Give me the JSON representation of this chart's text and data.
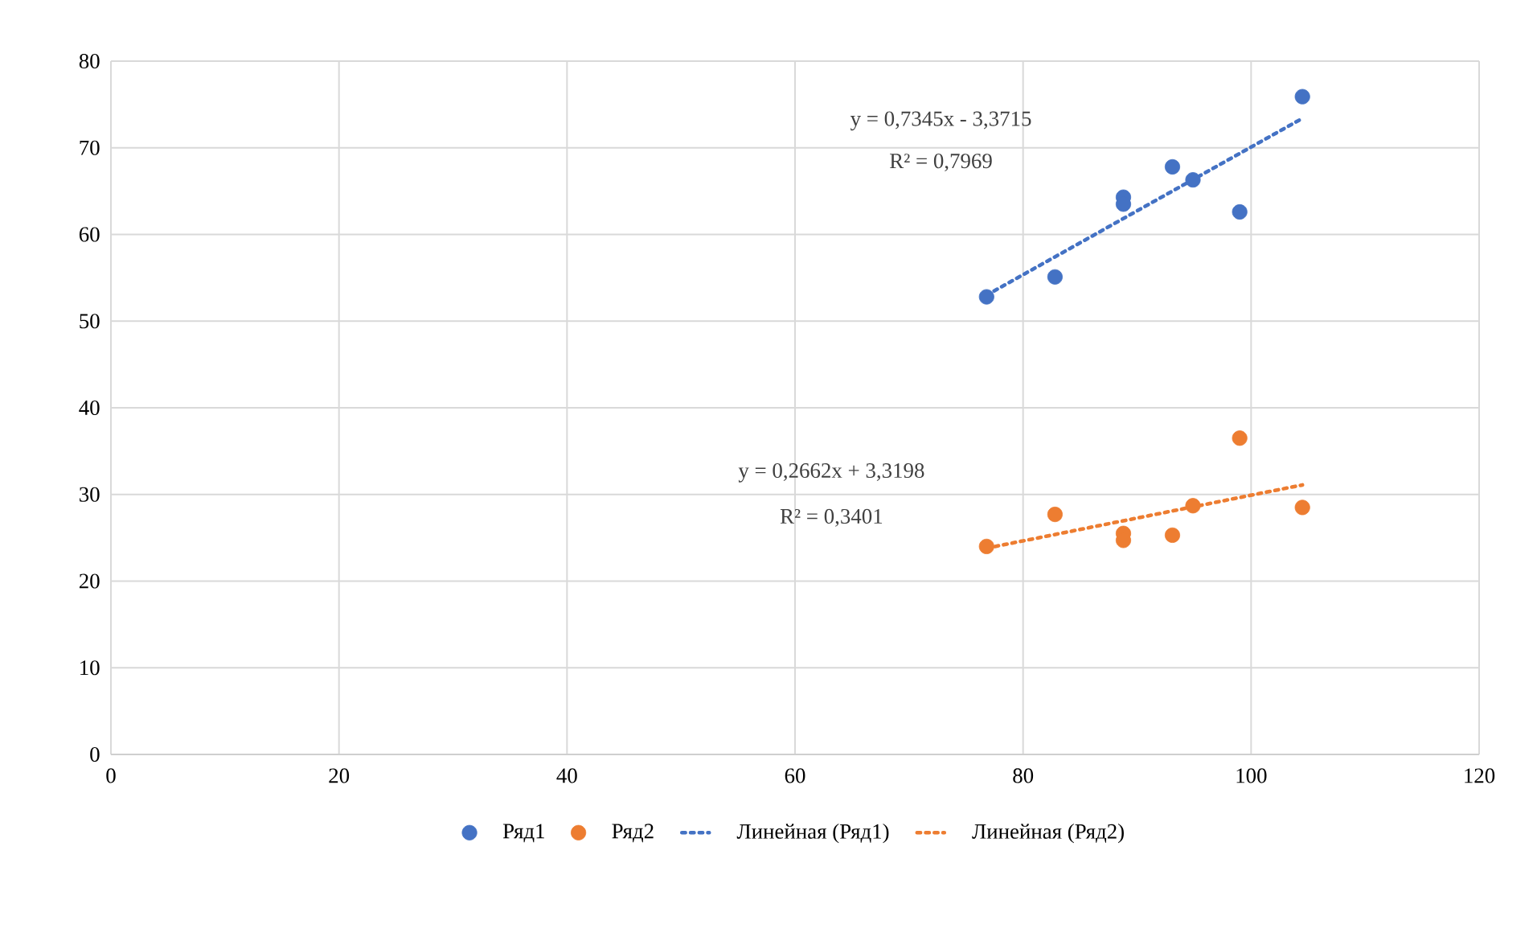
{
  "chart_data": {
    "type": "scatter",
    "xlim": [
      0,
      120
    ],
    "ylim": [
      0,
      80
    ],
    "xticks": [
      0,
      20,
      40,
      60,
      80,
      100,
      120
    ],
    "yticks": [
      0,
      10,
      20,
      30,
      40,
      50,
      60,
      70,
      80
    ],
    "grid": true,
    "legend": "bottom",
    "series": [
      {
        "name": "Ряд1",
        "marker": "circle",
        "color": "#4472c4",
        "x": [
          76.8,
          82.8,
          88.8,
          88.8,
          93.1,
          94.9,
          99.0,
          104.5
        ],
        "values": [
          52.8,
          55.1,
          64.3,
          63.5,
          67.8,
          66.3,
          62.6,
          75.9
        ]
      },
      {
        "name": "Ряд2",
        "marker": "circle",
        "color": "#ed7d31",
        "x": [
          76.8,
          82.8,
          88.8,
          88.8,
          93.1,
          94.9,
          99.0,
          104.5
        ],
        "values": [
          24.0,
          27.7,
          25.5,
          24.7,
          25.3,
          28.7,
          36.5,
          28.5
        ]
      },
      {
        "name": "Линейная (Ряд1)",
        "type": "line",
        "marker": "none",
        "line_style": "dotted",
        "color": "#4472c4",
        "x": [
          76.8,
          104.5
        ],
        "values": [
          53.0,
          73.4
        ]
      },
      {
        "name": "Линейная (Ряд2)",
        "type": "line",
        "marker": "none",
        "line_style": "dotted",
        "color": "#ed7d31",
        "x": [
          76.8,
          104.5
        ],
        "values": [
          23.8,
          31.1
        ]
      }
    ],
    "annotations": [
      "y = 0,7345x - 3,3715",
      "R² = 0,7969",
      "y = 0,2662x + 3,3198",
      "R² = 0,3401"
    ]
  }
}
